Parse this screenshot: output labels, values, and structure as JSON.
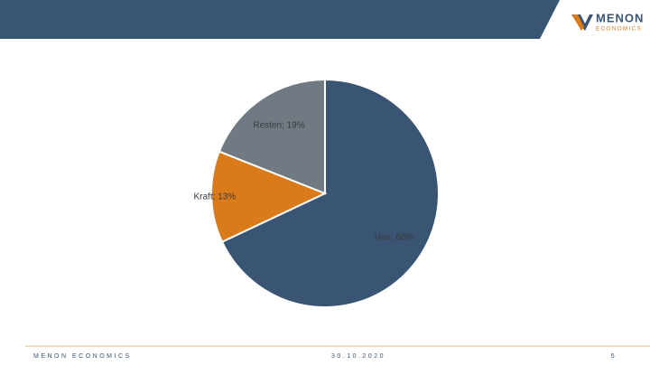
{
  "header": {
    "logo_name": "MENON",
    "logo_sub": "ECONOMICS"
  },
  "chart_data": {
    "type": "pie",
    "values": [
      68,
      13,
      19
    ],
    "value_labels": [
      "Hav; 68%",
      "Kraft; 13%",
      "Resten; 19%"
    ],
    "colors": [
      "#3a5573",
      "#d97b1a",
      "#717a82"
    ]
  },
  "footer": {
    "left": "MENON ECONOMICS",
    "date": "30.10.2020",
    "page": "5"
  }
}
